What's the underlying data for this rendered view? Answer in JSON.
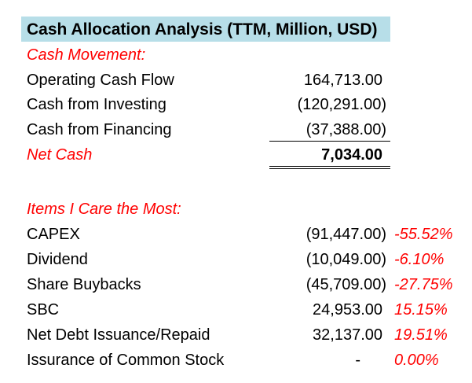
{
  "title": "Cash Allocation Analysis (TTM, Million, USD)",
  "cash_movement": {
    "heading": "Cash Movement:",
    "rows": [
      {
        "label": "Operating Cash Flow",
        "value": "164,713.00"
      },
      {
        "label": "Cash from Investing",
        "value": "(120,291.00)"
      },
      {
        "label": "Cash from Financing",
        "value": "(37,388.00)"
      }
    ],
    "net": {
      "label": "Net Cash",
      "value": "7,034.00"
    }
  },
  "items": {
    "heading": "Items I Care the Most:",
    "rows": [
      {
        "label": "CAPEX",
        "value": "(91,447.00)",
        "pct": "-55.52%"
      },
      {
        "label": "Dividend",
        "value": "(10,049.00)",
        "pct": "-6.10%"
      },
      {
        "label": "Share Buybacks",
        "value": "(45,709.00)",
        "pct": "-27.75%"
      },
      {
        "label": "SBC",
        "value": "24,953.00",
        "pct": "15.15%"
      },
      {
        "label": "Net Debt Issuance/Repaid",
        "value": "32,137.00",
        "pct": "19.51%"
      },
      {
        "label": "Issurance of Common Stock",
        "value": "-",
        "pct": "0.00%"
      }
    ]
  },
  "colors": {
    "title_fill": "#b7dee8",
    "accent_red": "#ff0000"
  }
}
